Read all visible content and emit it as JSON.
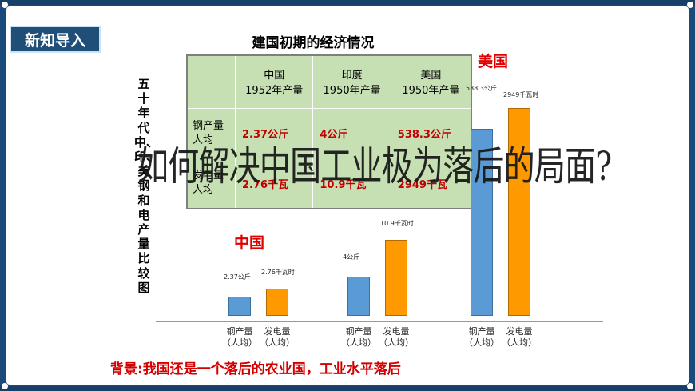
{
  "header": {
    "tag": "新知导入"
  },
  "table": {
    "title": "建国初期的经济情况",
    "columns": [
      "中国\n1952年产量",
      "印度\n1950年产量",
      "美国\n1950年产量"
    ],
    "rows": [
      {
        "label": "钢产量\n人均",
        "values": [
          "2.37公斤",
          "4公斤",
          "538.3公斤"
        ]
      },
      {
        "label": "发电量\n人均",
        "values": [
          "2.76千瓦",
          "10.9千瓦",
          "2949千瓦"
        ]
      }
    ]
  },
  "question": "如何解决中国工业极为落后的局面?",
  "background_note": "背景:我国还是一个落后的农业国，工业水平落后",
  "chart_data": {
    "type": "bar",
    "title": "五十年代中、印、美钢和电产量比较图",
    "groups": [
      {
        "name": "中国",
        "steel_label": "2.37公斤",
        "power_label": "2.76千瓦时",
        "steel": 2.37,
        "power": 2.76
      },
      {
        "name": "",
        "steel_label": "4公斤",
        "power_label": "10.9千瓦时",
        "steel": 4,
        "power": 10.9
      },
      {
        "name": "美国",
        "steel_label": "538.3公斤",
        "power_label": "2949千瓦时",
        "steel": 538.3,
        "power": 2949
      }
    ],
    "categories": [
      "钢产量\n（人均）",
      "发电量\n（人均）"
    ],
    "colors": {
      "steel": "#5b9bd5",
      "power": "#ff9900"
    }
  }
}
